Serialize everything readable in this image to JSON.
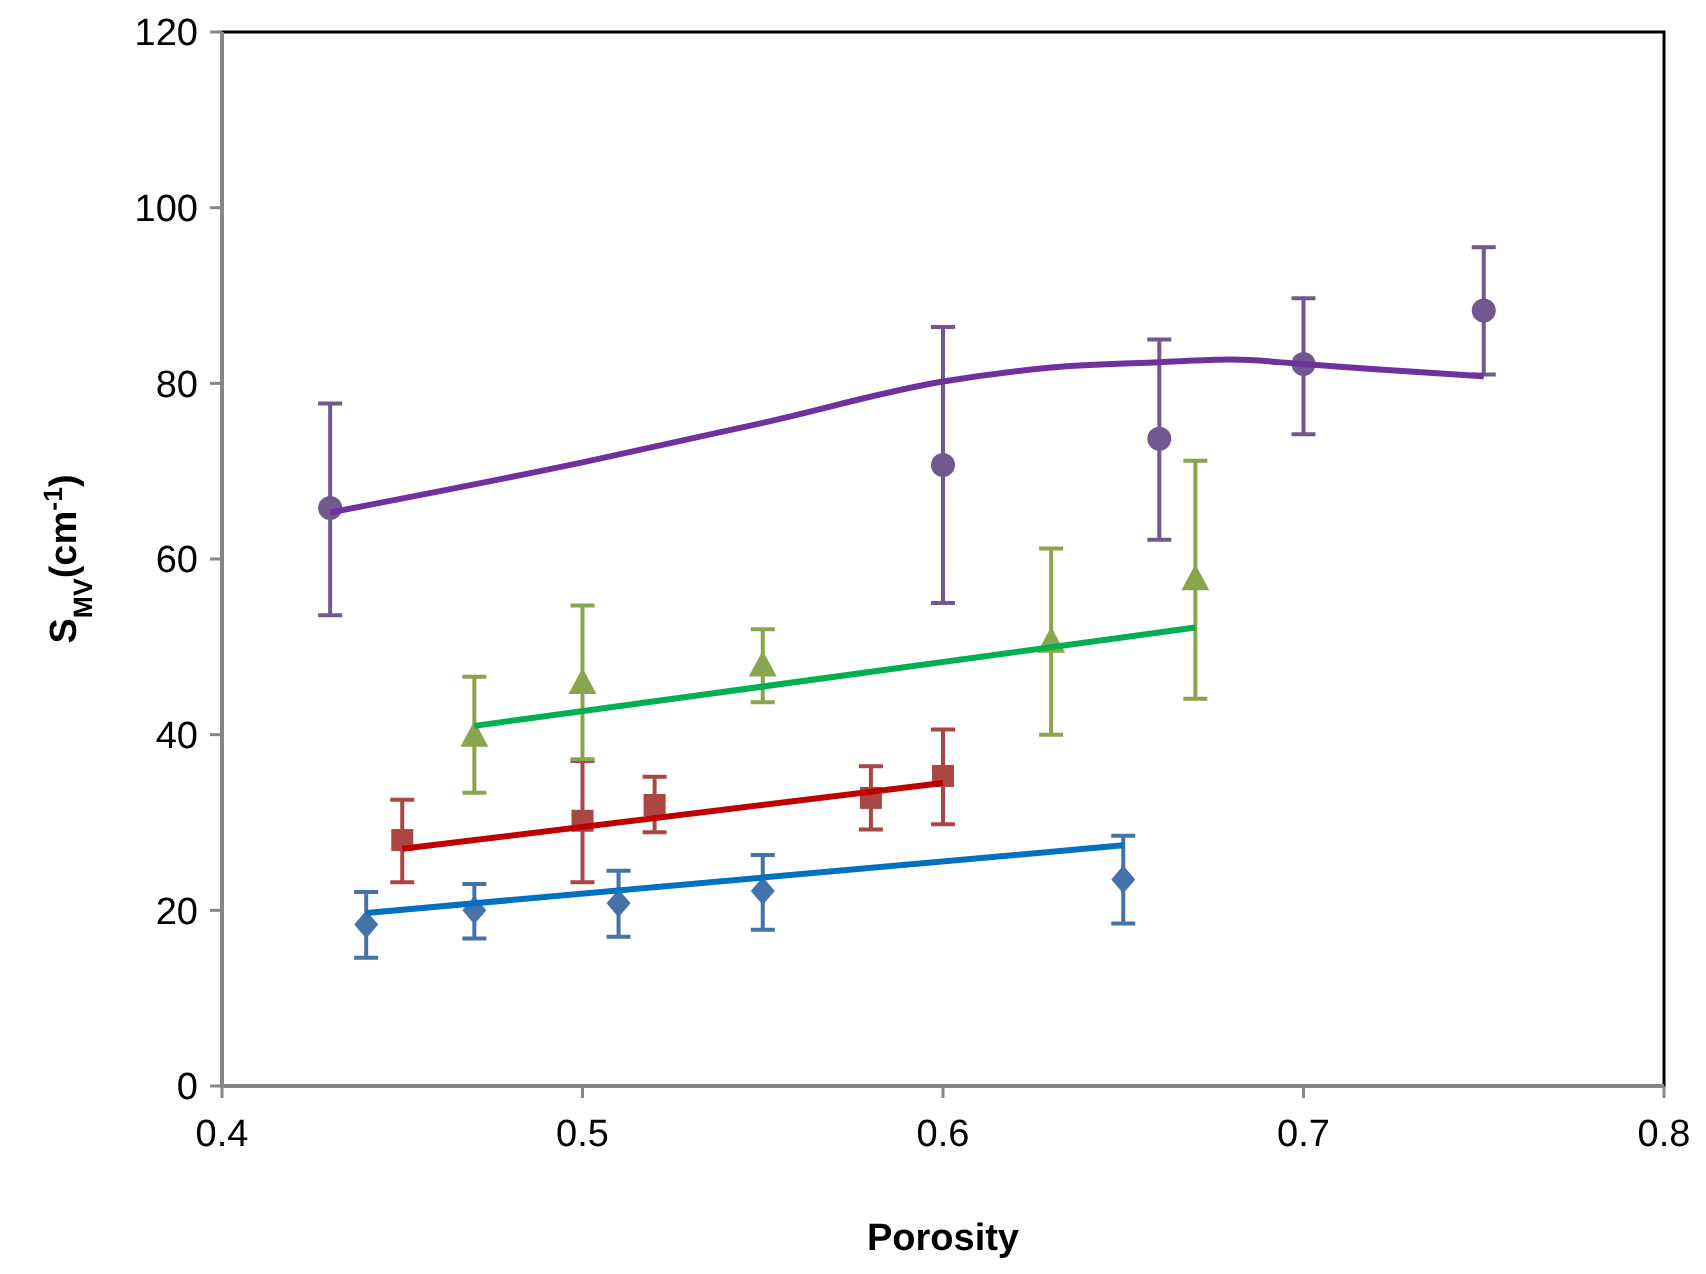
{
  "chart_data": {
    "type": "scatter",
    "xlabel": "Porosity",
    "ylabel": "S$_{MV}$(cm$^{-1}$)",
    "xlim": [
      0.4,
      0.8
    ],
    "xticks": [
      0.4,
      0.5,
      0.6,
      0.7,
      0.8
    ],
    "ylim": [
      0,
      120
    ],
    "yticks": [
      0,
      20,
      40,
      60,
      80,
      100,
      120
    ],
    "grid": false,
    "series": [
      {
        "color": "#4572a7",
        "marker": "diamond",
        "x": [
          0.44,
          0.47,
          0.51,
          0.55,
          0.65
        ],
        "values": [
          18.4,
          20,
          20.8,
          22.2,
          23.5
        ],
        "errors": [
          [
            14.6,
            22.1
          ],
          [
            16.8,
            23
          ],
          [
            17,
            24.5
          ],
          [
            17.8,
            26.3
          ],
          [
            18.5,
            28.5
          ]
        ]
      },
      {
        "type": "line",
        "color": "#0070c0",
        "marker": "none",
        "x": [
          0.44,
          0.65
        ],
        "values": [
          19.7,
          27.4
        ]
      },
      {
        "color": "#aa4643",
        "marker": "square",
        "x": [
          0.45,
          0.5,
          0.52,
          0.58,
          0.6
        ],
        "values": [
          28,
          30.2,
          32,
          32.8,
          35.3
        ],
        "errors": [
          [
            23.2,
            32.6
          ],
          [
            23.2,
            37
          ],
          [
            28.9,
            35.2
          ],
          [
            29.2,
            36.4
          ],
          [
            29.8,
            40.6
          ]
        ]
      },
      {
        "type": "line",
        "color": "#c00000",
        "marker": "none",
        "x": [
          0.45,
          0.6
        ],
        "values": [
          27,
          34.5
        ]
      },
      {
        "color": "#89a54e",
        "marker": "triangle",
        "x": [
          0.47,
          0.5,
          0.55,
          0.63,
          0.67
        ],
        "values": [
          40,
          46,
          48,
          50.7,
          57.8
        ],
        "errors": [
          [
            33.4,
            46.6
          ],
          [
            37.2,
            54.7
          ],
          [
            43.7,
            52
          ],
          [
            40,
            61.2
          ],
          [
            44.1,
            71.2
          ]
        ]
      },
      {
        "type": "line",
        "color": "#00b050",
        "marker": "none",
        "x": [
          0.47,
          0.67
        ],
        "values": [
          41,
          52.2
        ]
      },
      {
        "color": "#71588f",
        "marker": "circle",
        "x": [
          0.43,
          0.6,
          0.66,
          0.7,
          0.75
        ],
        "values": [
          65.8,
          70.7,
          73.7,
          82.2,
          88.3
        ],
        "errors": [
          [
            53.6,
            77.7
          ],
          [
            55,
            86.4
          ],
          [
            62.2,
            85
          ],
          [
            74.2,
            89.7
          ],
          [
            81,
            95.5
          ]
        ]
      },
      {
        "type": "line",
        "color": "#7030a0",
        "marker": "none",
        "x": [
          0.43,
          0.5,
          0.55,
          0.6,
          0.63,
          0.66,
          0.68,
          0.7,
          0.72,
          0.75
        ],
        "values": [
          65.3,
          71,
          75.5,
          80.2,
          81.8,
          82.4,
          82.7,
          82.2,
          81.6,
          80.8
        ]
      }
    ]
  }
}
